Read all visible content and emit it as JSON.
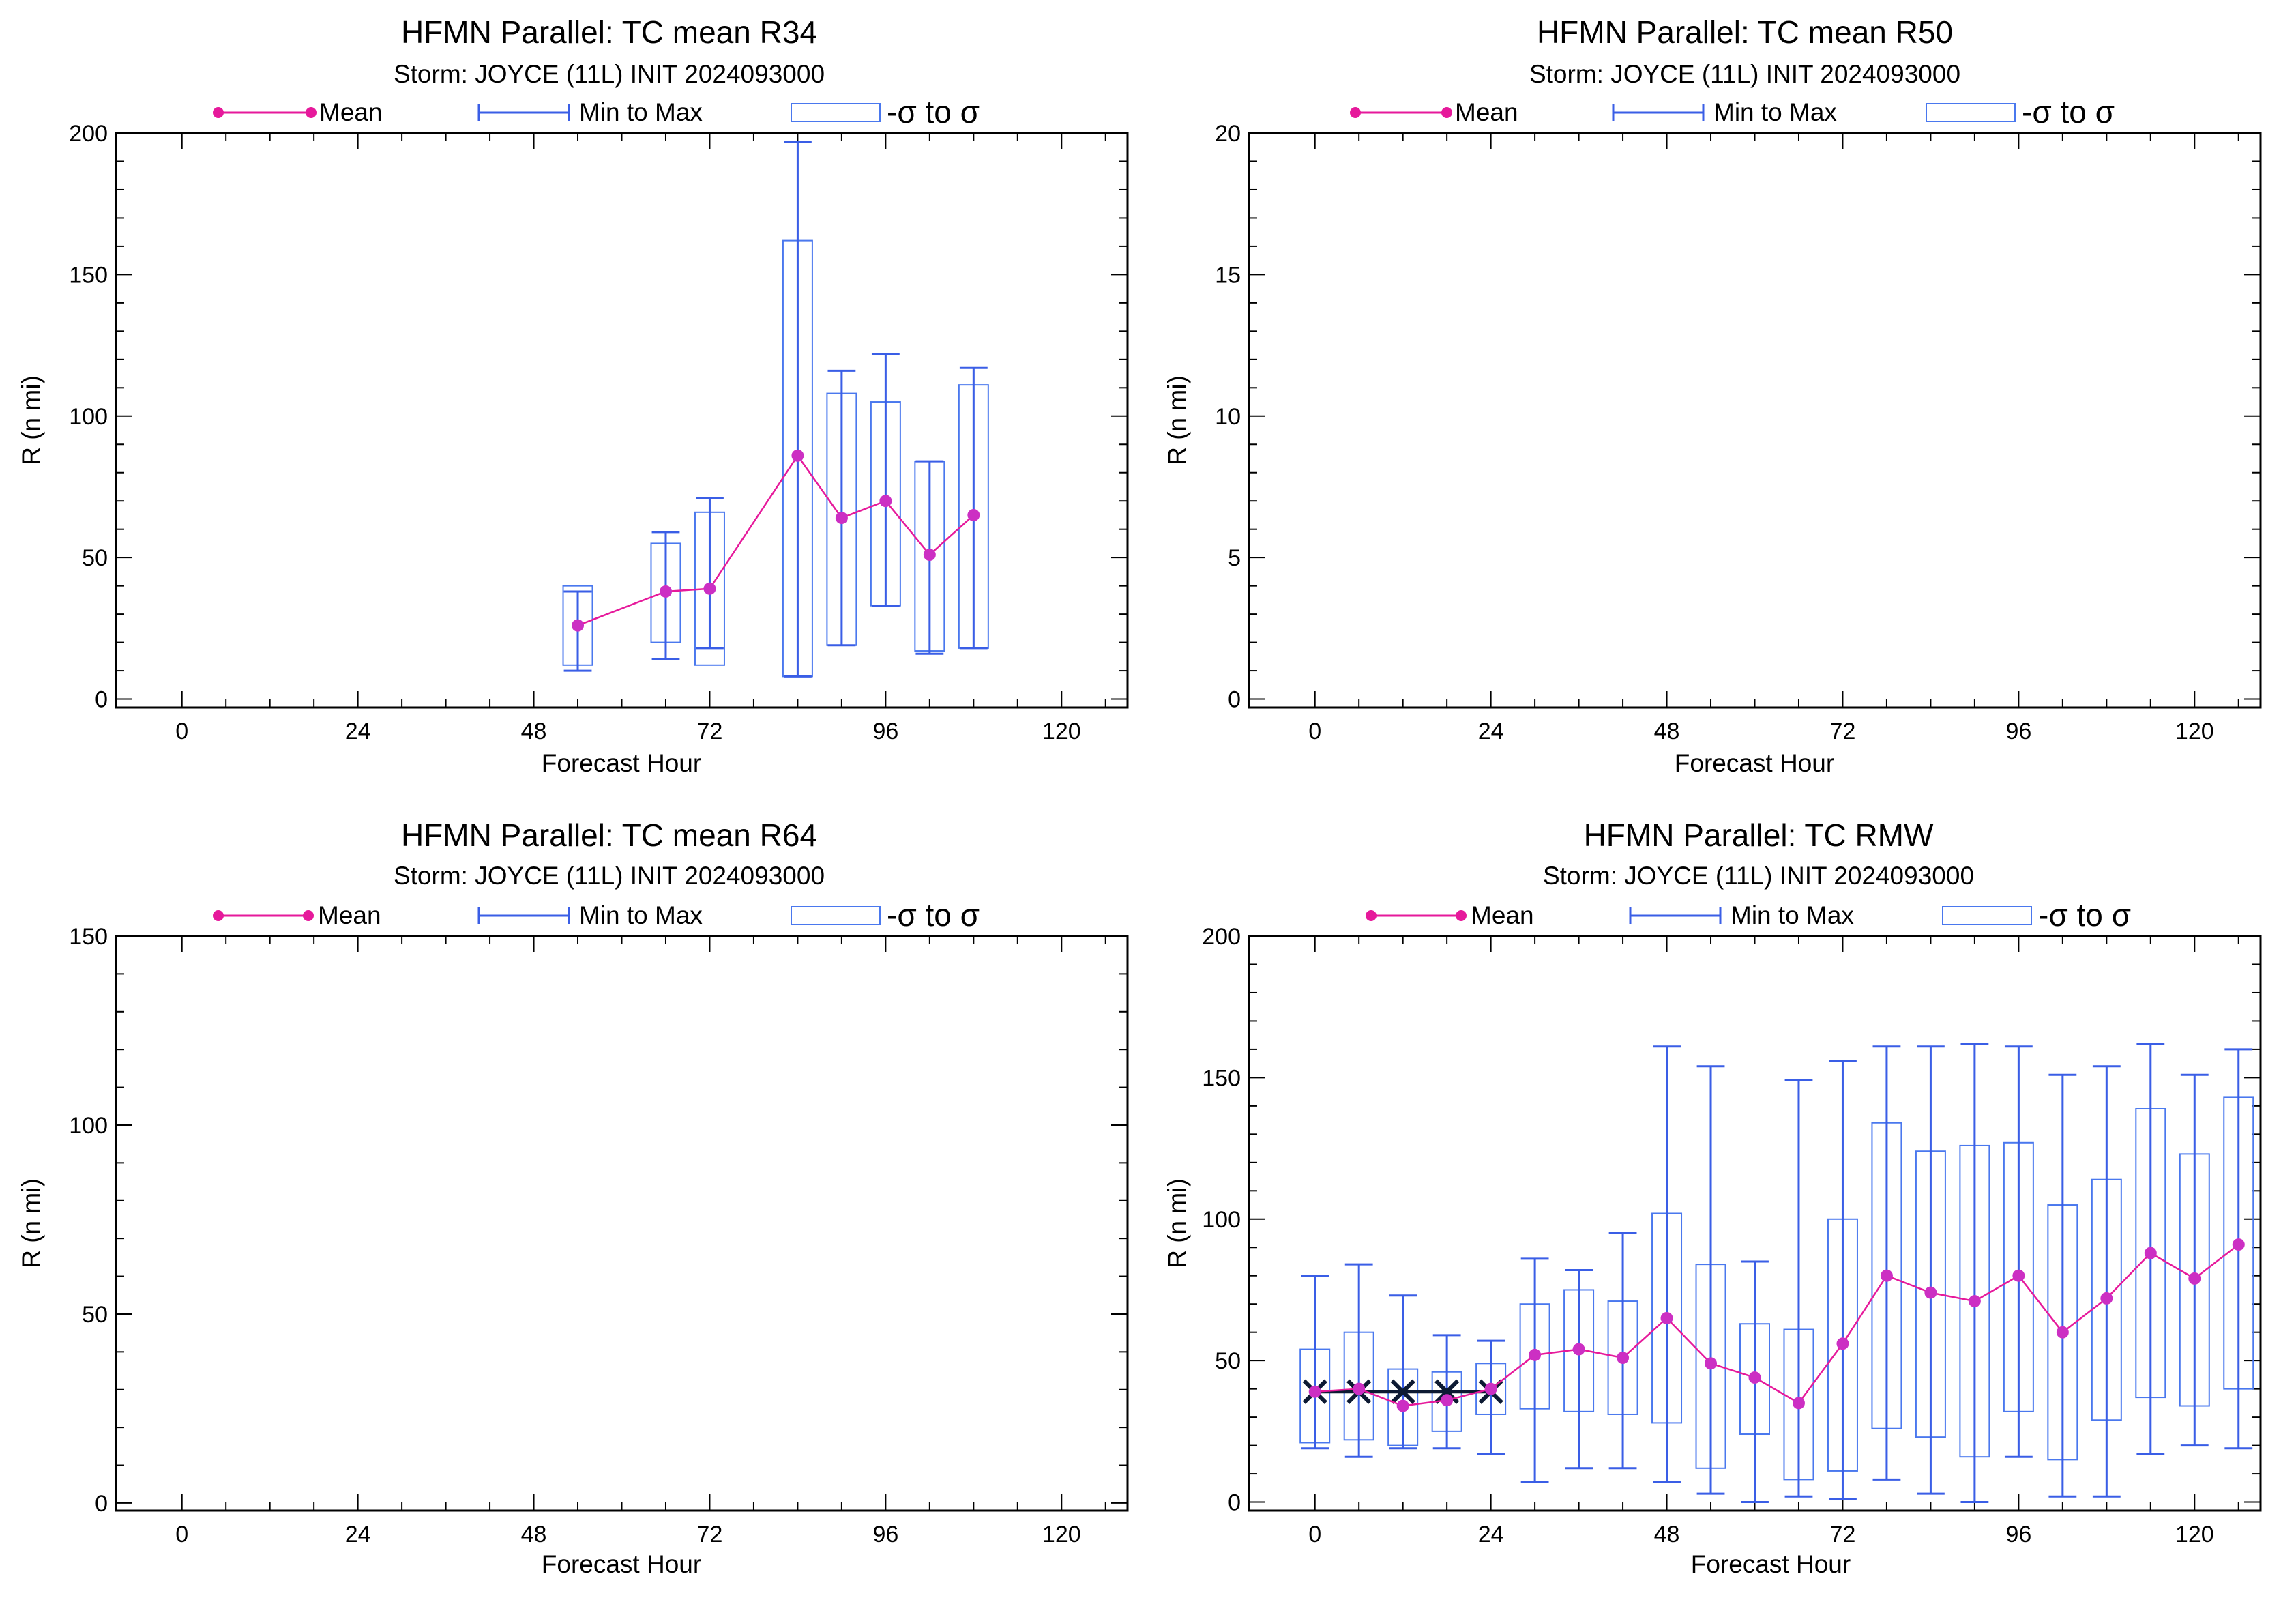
{
  "colors": {
    "mean": "#e6199b",
    "mean_marker": "#cc2fc3",
    "range": "#3a5ee6",
    "sigma_box": "#4a78ee",
    "best_track": "#0d1a33",
    "axis": "#000000"
  },
  "legend": {
    "mean_label": "Mean",
    "range_label": "Min to Max",
    "sigma_label": "-σ to σ"
  },
  "chart_data": [
    {
      "id": "r34",
      "type": "line",
      "title": "HFMN Parallel: TC mean R34",
      "subtitle": "Storm: JOYCE (11L) INIT 2024093000",
      "xlabel": "Forecast Hour",
      "ylabel": "R (n mi)",
      "xlim": [
        -9,
        129
      ],
      "ylim": [
        -3,
        200
      ],
      "xticks": [
        0,
        24,
        48,
        72,
        96,
        120
      ],
      "yticks": [
        0,
        50,
        100,
        150,
        200
      ],
      "grid": false,
      "legend_position": "top",
      "series": [
        {
          "name": "Mean",
          "x": [
            54,
            66,
            72,
            84,
            90,
            96,
            102,
            108
          ],
          "mean": [
            26,
            38,
            39,
            86,
            64,
            70,
            51,
            65
          ],
          "min": [
            10,
            14,
            18,
            8,
            19,
            33,
            16,
            18
          ],
          "max": [
            38,
            59,
            71,
            197,
            116,
            122,
            84,
            117
          ],
          "sigma_low": [
            12,
            20,
            12,
            8,
            19,
            33,
            17,
            18
          ],
          "sigma_high": [
            40,
            55,
            66,
            162,
            108,
            105,
            84,
            111
          ]
        }
      ],
      "best_track": null
    },
    {
      "id": "r50",
      "type": "line",
      "title": "HFMN Parallel: TC mean R50",
      "subtitle": "Storm: JOYCE (11L) INIT 2024093000",
      "xlabel": "Forecast Hour",
      "ylabel": "R (n mi)",
      "xlim": [
        -9,
        129
      ],
      "ylim": [
        -0.3,
        20
      ],
      "xticks": [
        0,
        24,
        48,
        72,
        96,
        120
      ],
      "yticks": [
        0,
        5,
        10,
        15,
        20
      ],
      "grid": false,
      "legend_position": "top",
      "series": [
        {
          "name": "Mean",
          "x": [],
          "mean": [],
          "min": [],
          "max": [],
          "sigma_low": [],
          "sigma_high": []
        }
      ],
      "best_track": null
    },
    {
      "id": "r64",
      "type": "line",
      "title": "HFMN Parallel: TC mean R64",
      "subtitle": "Storm: JOYCE (11L) INIT 2024093000",
      "xlabel": "Forecast Hour",
      "ylabel": "R (n mi)",
      "xlim": [
        -9,
        129
      ],
      "ylim": [
        -2,
        150
      ],
      "xticks": [
        0,
        24,
        48,
        72,
        96,
        120
      ],
      "yticks": [
        0,
        50,
        100,
        150
      ],
      "grid": false,
      "legend_position": "top",
      "series": [
        {
          "name": "Mean",
          "x": [],
          "mean": [],
          "min": [],
          "max": [],
          "sigma_low": [],
          "sigma_high": []
        }
      ],
      "best_track": null
    },
    {
      "id": "rmw",
      "type": "line",
      "title": "HFMN Parallel: TC RMW",
      "subtitle": "Storm: JOYCE (11L) INIT 2024093000",
      "xlabel": "Forecast Hour",
      "ylabel": "R (n mi)",
      "xlim": [
        -9,
        129
      ],
      "ylim": [
        -3,
        200
      ],
      "xticks": [
        0,
        24,
        48,
        72,
        96,
        120
      ],
      "yticks": [
        0,
        50,
        100,
        150,
        200
      ],
      "grid": false,
      "legend_position": "top",
      "series": [
        {
          "name": "Mean",
          "x": [
            0,
            6,
            12,
            18,
            24,
            30,
            36,
            42,
            48,
            54,
            60,
            66,
            72,
            78,
            84,
            90,
            96,
            102,
            108,
            114,
            120,
            126
          ],
          "mean": [
            39,
            40,
            34,
            36,
            40,
            52,
            54,
            51,
            65,
            49,
            44,
            35,
            56,
            80,
            74,
            71,
            80,
            60,
            72,
            88,
            79,
            91
          ],
          "min": [
            19,
            16,
            19,
            19,
            17,
            7,
            12,
            12,
            7,
            3,
            0,
            2,
            1,
            8,
            3,
            0,
            16,
            2,
            2,
            17,
            20,
            19
          ],
          "max": [
            80,
            84,
            73,
            59,
            57,
            86,
            82,
            95,
            161,
            154,
            85,
            149,
            156,
            161,
            161,
            162,
            161,
            151,
            154,
            162,
            151,
            160
          ],
          "sigma_low": [
            21,
            22,
            20,
            25,
            31,
            33,
            32,
            31,
            28,
            12,
            24,
            8,
            11,
            26,
            23,
            16,
            32,
            15,
            29,
            37,
            34,
            40
          ],
          "sigma_high": [
            54,
            60,
            47,
            46,
            49,
            70,
            75,
            71,
            102,
            84,
            63,
            61,
            100,
            134,
            124,
            126,
            127,
            105,
            114,
            139,
            123,
            143
          ]
        }
      ],
      "best_track": {
        "x": [
          0,
          6,
          12,
          18,
          24
        ],
        "y": [
          39,
          39,
          39,
          39,
          39
        ]
      }
    }
  ]
}
